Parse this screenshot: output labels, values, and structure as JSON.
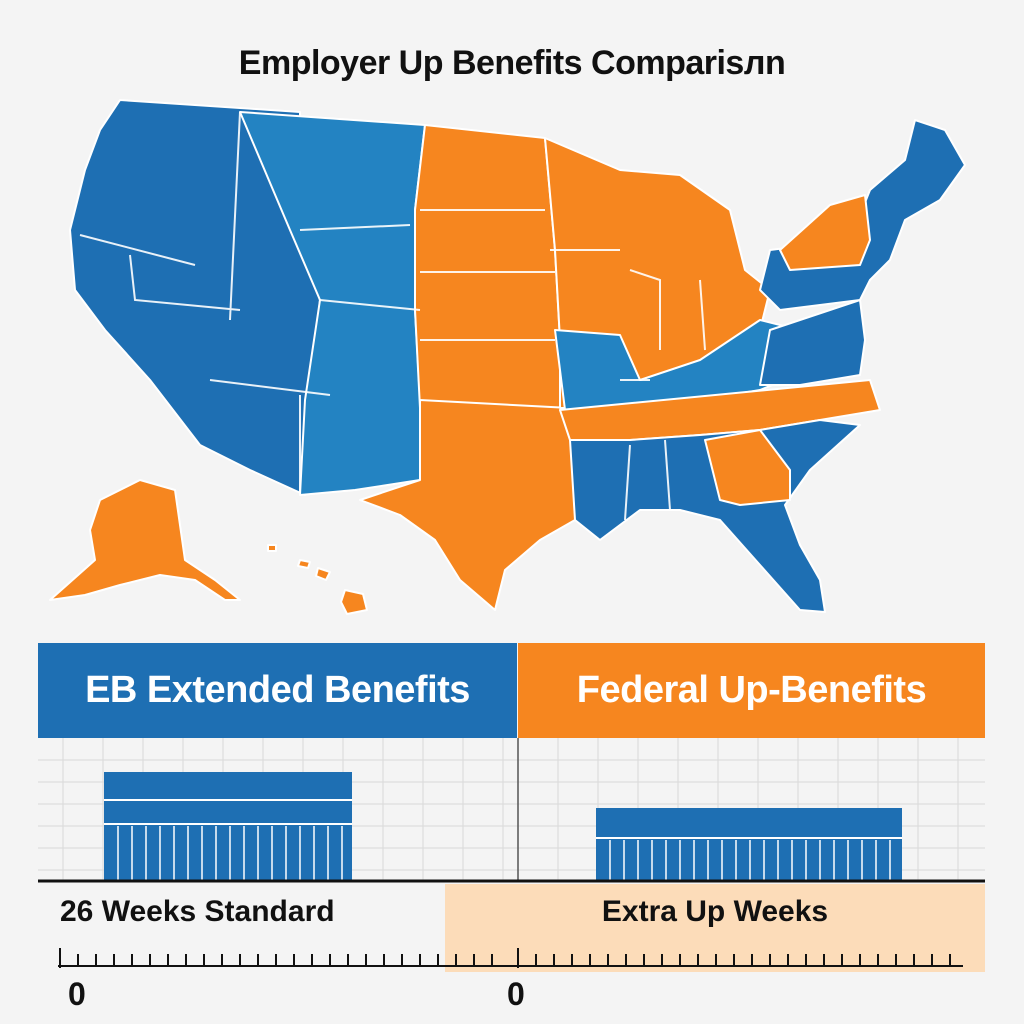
{
  "title": "Employer Up Benefits Comparisлn",
  "colors": {
    "blue": "#1e6fb3",
    "orange": "#f6861f",
    "extra_bg": "#fcdcb9"
  },
  "legend": {
    "left": {
      "label": "EB Extended Benefits",
      "color": "#1e6fb3"
    },
    "right": {
      "label": "Federal Up-Benefits",
      "color": "#f6861f"
    }
  },
  "axis": {
    "left_label": "26 Weeks Standard",
    "right_label": "Extra Up Weeks",
    "left_zero": "0",
    "right_zero": "0"
  },
  "map": {
    "regions": [
      {
        "name": "west",
        "category": "EB Extended Benefits"
      },
      {
        "name": "mountain",
        "category": "EB Extended Benefits"
      },
      {
        "name": "plains",
        "category": "Federal Up-Benefits"
      },
      {
        "name": "texas",
        "category": "Federal Up-Benefits"
      },
      {
        "name": "midwest",
        "category": "Federal Up-Benefits"
      },
      {
        "name": "southeast",
        "category": "EB Extended Benefits"
      },
      {
        "name": "northeast",
        "category": "EB Extended Benefits"
      },
      {
        "name": "alaska",
        "category": "Federal Up-Benefits"
      },
      {
        "name": "hawaii",
        "category": "Federal Up-Benefits"
      }
    ]
  }
}
